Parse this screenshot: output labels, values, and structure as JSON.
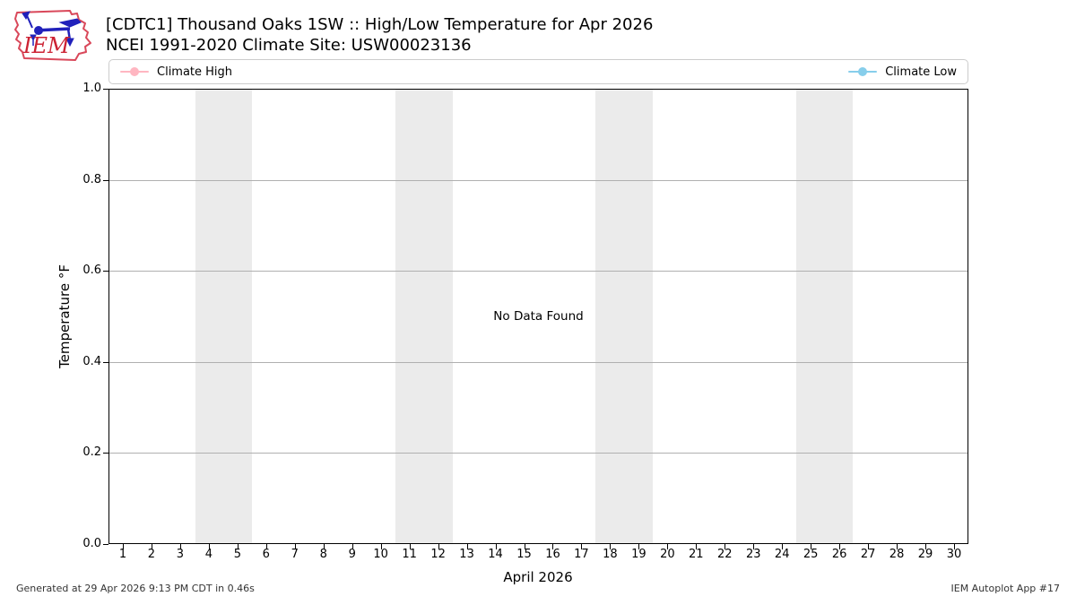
{
  "header": {
    "logo_text": "IEM"
  },
  "chart_data": {
    "type": "line",
    "title": "[CDTC1] Thousand Oaks 1SW :: High/Low Temperature for Apr 2026",
    "subtitle": "NCEI 1991-2020 Climate Site: USW00023136",
    "xlabel": "April 2026",
    "ylabel": "Temperature °F",
    "xlim": [
      0.5,
      30.5
    ],
    "ylim": [
      0.0,
      1.0
    ],
    "x_ticks": [
      1,
      2,
      3,
      4,
      5,
      6,
      7,
      8,
      9,
      10,
      11,
      12,
      13,
      14,
      15,
      16,
      17,
      18,
      19,
      20,
      21,
      22,
      23,
      24,
      25,
      26,
      27,
      28,
      29,
      30
    ],
    "y_ticks": [
      0.0,
      0.2,
      0.4,
      0.6,
      0.8,
      1.0
    ],
    "y_tick_labels": [
      "0.0",
      "0.2",
      "0.4",
      "0.6",
      "0.8",
      "1.0"
    ],
    "grid": "horizontal",
    "grid_color": "#b0b0b0",
    "legend_position": "top strip spanning plot width; high at left, low at right",
    "series": [
      {
        "name": "Climate High",
        "color": "#ffb6c1",
        "x": [],
        "values": []
      },
      {
        "name": "Climate Low",
        "color": "#87ceeb",
        "x": [],
        "values": []
      }
    ],
    "annotation": "No Data Found",
    "weekend_bands": [
      [
        3.5,
        5.5
      ],
      [
        10.5,
        12.5
      ],
      [
        17.5,
        19.5
      ],
      [
        24.5,
        26.5
      ]
    ],
    "band_color": "#ebebeb"
  },
  "footer": {
    "generated": "Generated at 29 Apr 2026 9:13 PM CDT in 0.46s",
    "app": "IEM Autoplot App #17"
  }
}
